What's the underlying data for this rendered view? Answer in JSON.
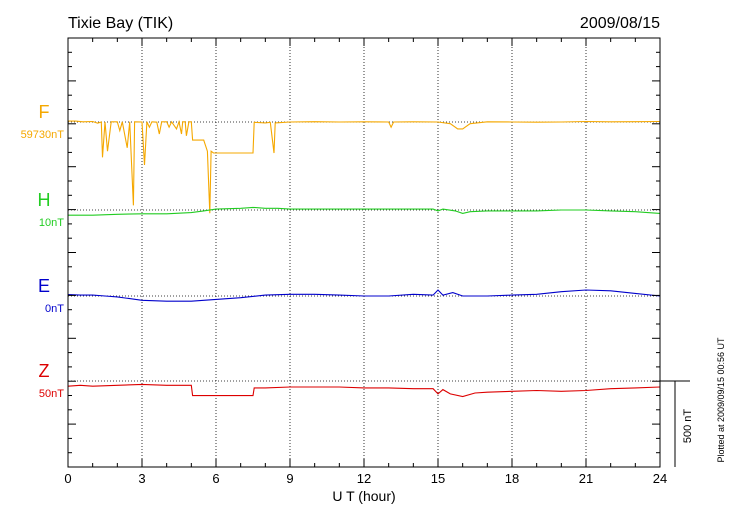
{
  "header": {
    "station": "Tixie Bay (TIK)",
    "date": "2009/08/15"
  },
  "footer": {
    "plotted": "Plotted at 2009/09/15 00:56 UT"
  },
  "chart_data": {
    "type": "line",
    "xlabel": "U T (hour)",
    "xlim": [
      0,
      24
    ],
    "xticks": [
      0,
      3,
      6,
      9,
      12,
      15,
      18,
      21,
      24
    ],
    "xtick_labels": [
      "0",
      "3",
      "6",
      "9",
      "12",
      "15",
      "18",
      "21",
      "24"
    ],
    "grid": true,
    "scale_bar": {
      "label": "500 nT",
      "value_nT": 500
    },
    "series": [
      {
        "name": "F",
        "baseline_label": "59730nT",
        "baseline_nT": 59730,
        "color": "#f5a800",
        "points": [
          [
            0,
            59735
          ],
          [
            0.3,
            59735
          ],
          [
            0.6,
            59731
          ],
          [
            1.0,
            59733
          ],
          [
            1.2,
            59723
          ],
          [
            1.35,
            59730
          ],
          [
            1.4,
            59525
          ],
          [
            1.5,
            59730
          ],
          [
            1.6,
            59560
          ],
          [
            1.75,
            59731
          ],
          [
            2.0,
            59731
          ],
          [
            2.1,
            59680
          ],
          [
            2.2,
            59731
          ],
          [
            2.4,
            59580
          ],
          [
            2.5,
            59731
          ],
          [
            2.65,
            59245
          ],
          [
            2.7,
            59731
          ],
          [
            3.0,
            59730
          ],
          [
            3.1,
            59480
          ],
          [
            3.2,
            59731
          ],
          [
            3.3,
            59700
          ],
          [
            3.4,
            59731
          ],
          [
            3.6,
            59729
          ],
          [
            3.7,
            59660
          ],
          [
            3.8,
            59731
          ],
          [
            4.0,
            59731
          ],
          [
            4.1,
            59700
          ],
          [
            4.2,
            59731
          ],
          [
            4.4,
            59690
          ],
          [
            4.5,
            59731
          ],
          [
            4.6,
            59660
          ],
          [
            4.65,
            59731
          ],
          [
            4.75,
            59731
          ],
          [
            4.8,
            59650
          ],
          [
            4.9,
            59731
          ],
          [
            5.0,
            59731
          ],
          [
            5.05,
            59625
          ],
          [
            5.5,
            59625
          ],
          [
            5.65,
            59560
          ],
          [
            5.75,
            59200
          ],
          [
            5.8,
            59560
          ],
          [
            5.9,
            59550
          ],
          [
            6.1,
            59550
          ],
          [
            7.0,
            59550
          ],
          [
            7.5,
            59550
          ],
          [
            7.55,
            59728
          ],
          [
            8.0,
            59725
          ],
          [
            8.2,
            59728
          ],
          [
            8.35,
            59550
          ],
          [
            8.4,
            59725
          ],
          [
            9.0,
            59730
          ],
          [
            10,
            59732
          ],
          [
            11,
            59730
          ],
          [
            12,
            59731
          ],
          [
            13,
            59730
          ],
          [
            13.1,
            59700
          ],
          [
            13.2,
            59730
          ],
          [
            14,
            59731
          ],
          [
            15,
            59730
          ],
          [
            15.5,
            59720
          ],
          [
            15.8,
            59690
          ],
          [
            16.0,
            59690
          ],
          [
            16.3,
            59720
          ],
          [
            17,
            59731
          ],
          [
            18,
            59730
          ],
          [
            19,
            59729
          ],
          [
            20,
            59730
          ],
          [
            21,
            59733
          ],
          [
            22,
            59731
          ],
          [
            23,
            59732
          ],
          [
            24,
            59733
          ]
        ]
      },
      {
        "name": "H",
        "baseline_label": "10nT",
        "baseline_nT": 10,
        "color": "#22cc22",
        "points": [
          [
            0,
            -20
          ],
          [
            1,
            -20
          ],
          [
            2,
            -15
          ],
          [
            3,
            -12
          ],
          [
            4,
            -12
          ],
          [
            5,
            -5
          ],
          [
            5.5,
            5
          ],
          [
            6,
            15
          ],
          [
            7,
            20
          ],
          [
            7.5,
            25
          ],
          [
            8,
            20
          ],
          [
            8.5,
            20
          ],
          [
            9,
            15
          ],
          [
            10,
            15
          ],
          [
            11,
            15
          ],
          [
            12,
            15
          ],
          [
            13,
            15
          ],
          [
            14,
            15
          ],
          [
            14.8,
            15
          ],
          [
            15,
            5
          ],
          [
            15.2,
            15
          ],
          [
            15.7,
            5
          ],
          [
            16,
            -10
          ],
          [
            16.3,
            0
          ],
          [
            17,
            5
          ],
          [
            18,
            5
          ],
          [
            19,
            5
          ],
          [
            20,
            10
          ],
          [
            21,
            10
          ],
          [
            22,
            5
          ],
          [
            23,
            0
          ],
          [
            24,
            -10
          ]
        ]
      },
      {
        "name": "E",
        "baseline_label": "0nT",
        "baseline_nT": 0,
        "color": "#0000cc",
        "points": [
          [
            0,
            8
          ],
          [
            0.5,
            5
          ],
          [
            1,
            5
          ],
          [
            1.5,
            0
          ],
          [
            2,
            -5
          ],
          [
            3,
            -25
          ],
          [
            4,
            -30
          ],
          [
            5,
            -30
          ],
          [
            6,
            -20
          ],
          [
            7,
            -10
          ],
          [
            8,
            5
          ],
          [
            9,
            10
          ],
          [
            10,
            10
          ],
          [
            11,
            5
          ],
          [
            12,
            0
          ],
          [
            13,
            0
          ],
          [
            14,
            10
          ],
          [
            14.8,
            5
          ],
          [
            15,
            35
          ],
          [
            15.2,
            5
          ],
          [
            15.6,
            20
          ],
          [
            16,
            0
          ],
          [
            17,
            0
          ],
          [
            18,
            5
          ],
          [
            19,
            10
          ],
          [
            20,
            25
          ],
          [
            21,
            35
          ],
          [
            22,
            30
          ],
          [
            23,
            15
          ],
          [
            24,
            0
          ]
        ]
      },
      {
        "name": "Z",
        "baseline_label": "50nT",
        "baseline_nT": 50,
        "color": "#dd0000",
        "points": [
          [
            0,
            20
          ],
          [
            0.5,
            25
          ],
          [
            1,
            20
          ],
          [
            2,
            25
          ],
          [
            3,
            30
          ],
          [
            4,
            25
          ],
          [
            5,
            25
          ],
          [
            5.05,
            -35
          ],
          [
            6,
            -35
          ],
          [
            7,
            -35
          ],
          [
            7.5,
            -35
          ],
          [
            7.55,
            10
          ],
          [
            8,
            10
          ],
          [
            9,
            15
          ],
          [
            10,
            15
          ],
          [
            11,
            15
          ],
          [
            12,
            10
          ],
          [
            13,
            10
          ],
          [
            14,
            5
          ],
          [
            14.8,
            5
          ],
          [
            15,
            -25
          ],
          [
            15.2,
            0
          ],
          [
            15.5,
            -25
          ],
          [
            16,
            -40
          ],
          [
            16.5,
            -20
          ],
          [
            17,
            -15
          ],
          [
            18,
            -10
          ],
          [
            19,
            -5
          ],
          [
            20,
            -10
          ],
          [
            21,
            -5
          ],
          [
            22,
            5
          ],
          [
            23,
            10
          ],
          [
            24,
            15
          ]
        ]
      }
    ]
  }
}
